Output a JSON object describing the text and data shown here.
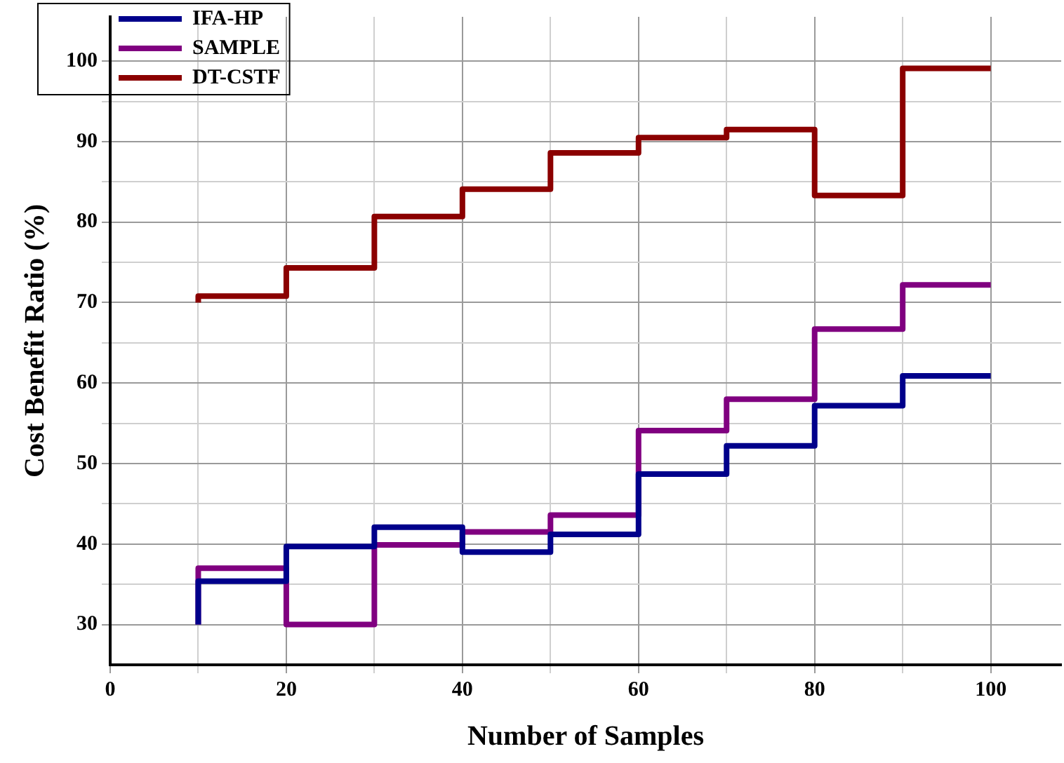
{
  "chart_data": {
    "type": "step",
    "xlabel": "Number of Samples",
    "ylabel": "Cost Benefit Ratio (%)",
    "x": [
      10,
      20,
      30,
      40,
      50,
      60,
      70,
      80,
      90,
      100
    ],
    "series": [
      {
        "name": "IFA-HP",
        "color": "#00008b",
        "values": [
          30,
          35.4,
          39.7,
          42.1,
          39.0,
          41.2,
          48.7,
          52.2,
          57.2,
          60.9
        ]
      },
      {
        "name": "SAMPLE",
        "color": "#800080",
        "values": [
          30,
          37.0,
          30,
          39.9,
          41.5,
          43.6,
          54.1,
          58.0,
          66.7,
          72.2
        ]
      },
      {
        "name": "DT-CSTF",
        "color": "#8b0000",
        "values": [
          70,
          70.8,
          74.3,
          80.7,
          84.1,
          88.6,
          90.5,
          91.5,
          83.3,
          99.1
        ]
      }
    ],
    "xlim": [
      0,
      108
    ],
    "ylim": [
      25,
      105.5
    ],
    "xticks": [
      0,
      {
        "value": 10,
        "label": null
      },
      20,
      {
        "value": 30,
        "label": null
      },
      40,
      {
        "value": 50,
        "label": null
      },
      60,
      {
        "value": 70,
        "label": null
      },
      80,
      {
        "value": 90,
        "label": null
      },
      100
    ],
    "yticks": [
      30,
      {
        "value": 35,
        "label": null
      },
      40,
      {
        "value": 45,
        "label": null
      },
      50,
      {
        "value": 55,
        "label": null
      },
      60,
      {
        "value": 65,
        "label": null
      },
      70,
      {
        "value": 75,
        "label": null
      },
      80,
      {
        "value": 85,
        "label": null
      },
      90,
      {
        "value": 95,
        "label": null
      },
      100
    ],
    "grid": true,
    "legend": "top left",
    "marker": "none",
    "line_style": "solid"
  }
}
